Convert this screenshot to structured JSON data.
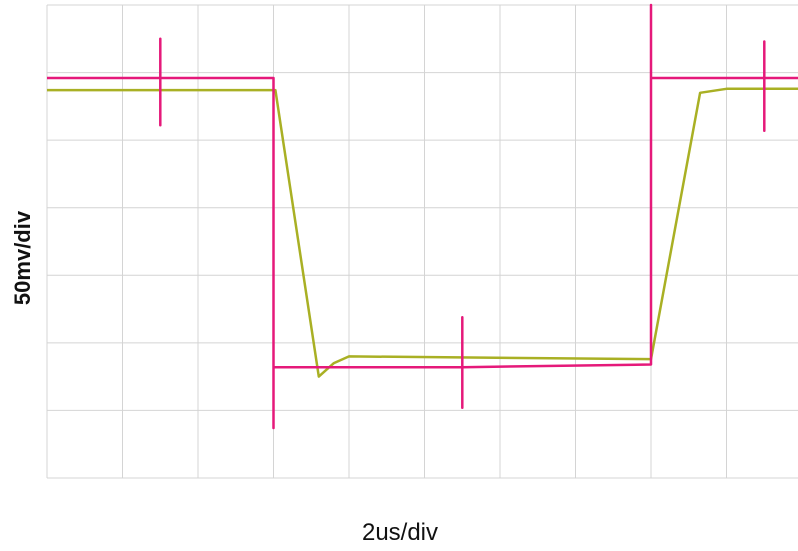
{
  "chart_data": {
    "type": "line",
    "xlabel": "2us/div",
    "ylabel": "50mv/div",
    "xlim": [
      0,
      20
    ],
    "ylim": [
      -150,
      200
    ],
    "xticks": [
      0,
      2,
      4,
      6,
      8,
      10,
      12,
      14,
      16,
      18,
      20
    ],
    "yticks": [
      -150,
      -100,
      -50,
      0,
      50,
      100,
      150,
      200
    ],
    "grid": true,
    "series": [
      {
        "color": "#a9b024",
        "x": [
          0,
          6.05,
          7.2,
          7.6,
          8.0,
          16.0,
          17.3,
          18.0,
          20
        ],
        "values": [
          137,
          137,
          -75,
          -65,
          -60,
          -62,
          135,
          138,
          138
        ]
      },
      {
        "color": "#e5197a",
        "x": [
          0,
          3.0,
          3.0,
          3.0,
          3.0,
          6.0,
          6.0,
          6.0,
          11.0,
          11.0,
          11.0,
          11.0,
          16.0,
          16.0,
          16.0,
          19.0,
          19.0,
          19.0,
          19.0,
          20
        ],
        "values": [
          146,
          146,
          175,
          111,
          146,
          146,
          -113,
          -68,
          -68,
          -31,
          -98,
          -68,
          -66,
          200,
          146,
          146,
          173,
          107,
          146,
          146
        ]
      }
    ]
  }
}
